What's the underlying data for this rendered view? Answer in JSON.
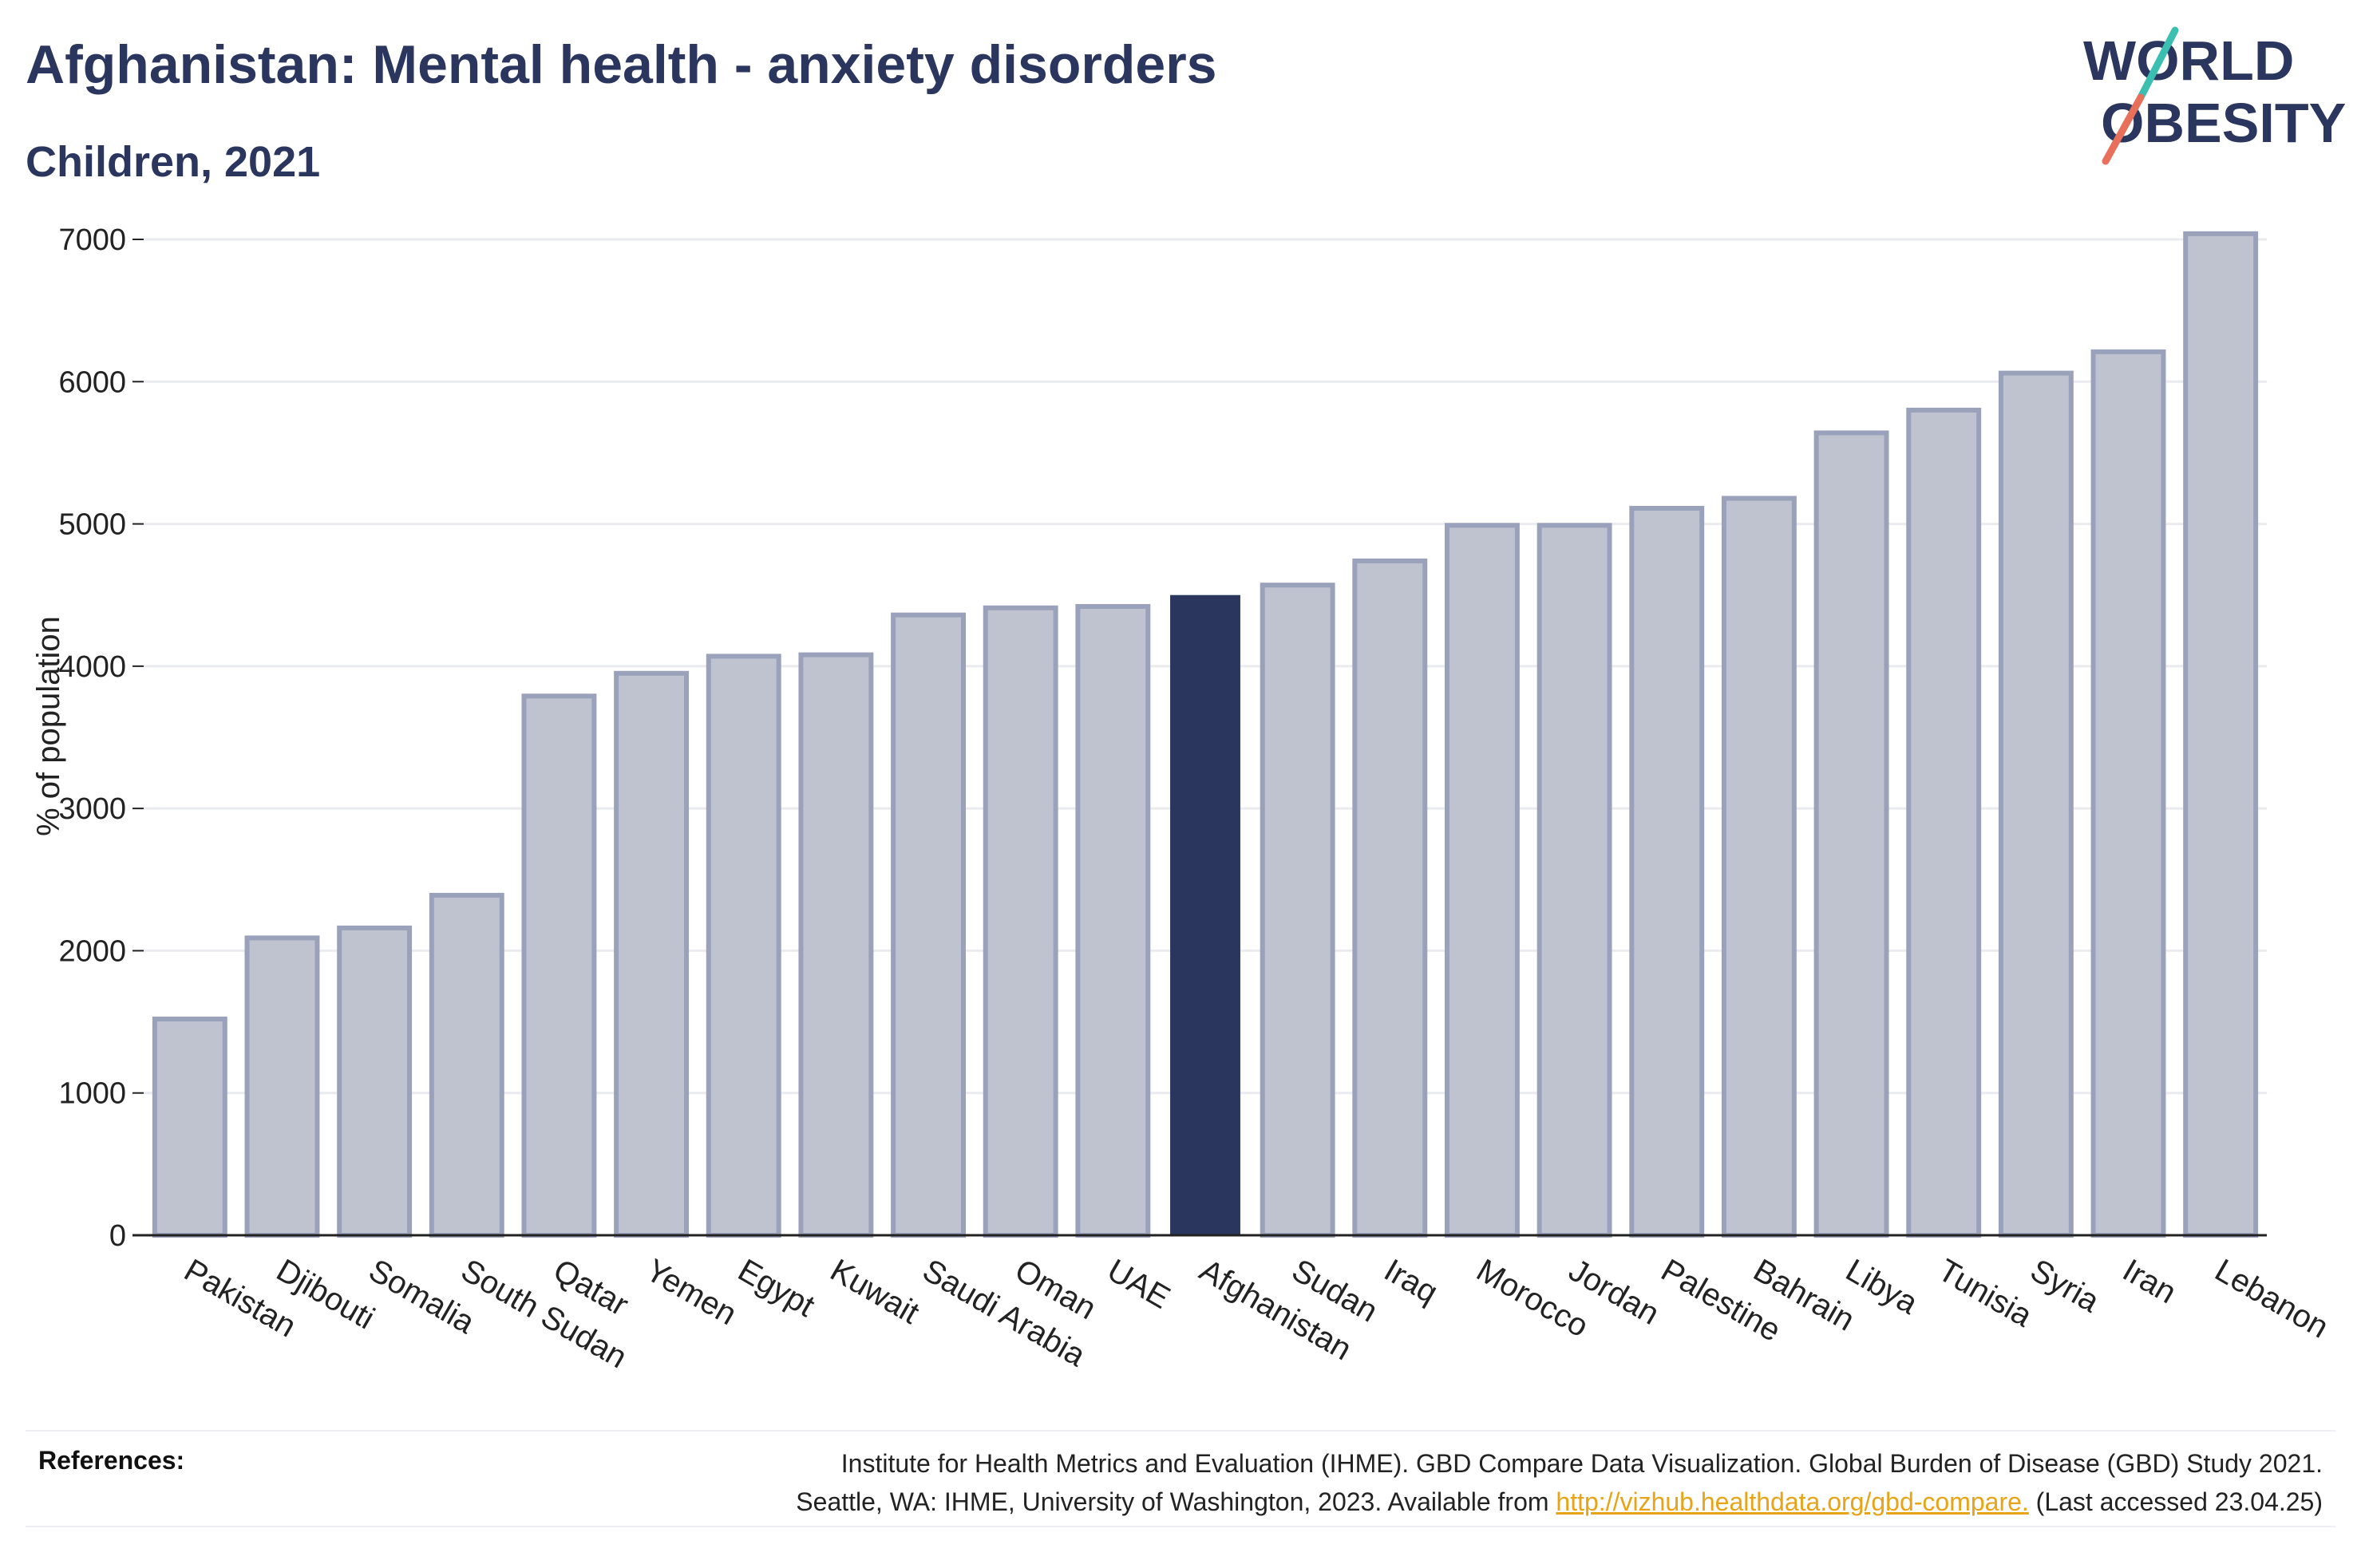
{
  "header": {
    "title": "Afghanistan: Mental health - anxiety disorders",
    "subtitle": "Children, 2021"
  },
  "logo": {
    "line1": "WORLD",
    "line2": "OBESITY",
    "colors": {
      "text": "#2b365f",
      "slash_teal": "#3bbfb0",
      "slash_coral": "#e8705a"
    }
  },
  "colors": {
    "bar": "#bfc3d0",
    "bar_stroke": "#9aa1ba",
    "highlight": "#2b365f",
    "grid": "#e9ebef",
    "axis": "#222222",
    "link": "#e8a317"
  },
  "chart_data": {
    "type": "bar",
    "title": "Afghanistan: Mental health - anxiety disorders",
    "subtitle": "Children, 2021",
    "xlabel": "",
    "ylabel": "% of population",
    "ylim": [
      0,
      7000
    ],
    "yticks": [
      0,
      1000,
      2000,
      3000,
      4000,
      5000,
      6000,
      7000
    ],
    "grid": true,
    "highlight": "Afghanistan",
    "categories": [
      "Pakistan",
      "Djibouti",
      "Somalia",
      "South Sudan",
      "Qatar",
      "Yemen",
      "Egypt",
      "Kuwait",
      "Saudi Arabia",
      "Oman",
      "UAE",
      "Afghanistan",
      "Sudan",
      "Iraq",
      "Morocco",
      "Jordan",
      "Palestine",
      "Bahrain",
      "Libya",
      "Tunisia",
      "Syria",
      "Iran",
      "Lebanon"
    ],
    "values": [
      1520,
      2090,
      2160,
      2390,
      3790,
      3950,
      4070,
      4080,
      4360,
      4410,
      4420,
      4500,
      4570,
      4740,
      4990,
      4990,
      5110,
      5180,
      5640,
      5800,
      6060,
      6210,
      7040
    ]
  },
  "references": {
    "label": "References:",
    "line1": "Institute for Health Metrics and Evaluation (IHME). GBD Compare Data Visualization. Global Burden of Disease (GBD) Study 2021.",
    "line2_prefix": "Seattle, WA: IHME, University of Washington, 2023. Available from ",
    "link": "http://vizhub.healthdata.org/gbd-compare.",
    "line2_suffix": " (Last accessed 23.04.25)"
  }
}
